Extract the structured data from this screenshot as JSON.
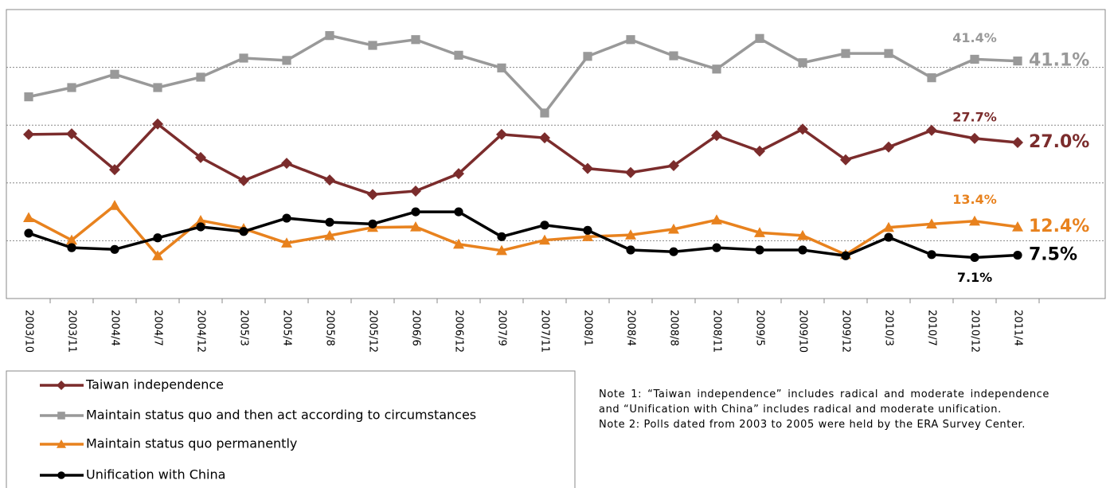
{
  "chart_data": {
    "type": "line",
    "categories": [
      "2003/10",
      "2003/11",
      "2004/4",
      "2004/7",
      "2004/12",
      "2005/3",
      "2005/4",
      "2005/8",
      "2005/12",
      "2006/6",
      "2006/12",
      "2007/9",
      "2007/11",
      "2008/1",
      "2008/4",
      "2008/8",
      "2008/11",
      "2009/5",
      "2009/10",
      "2009/12",
      "2010/3",
      "2010/7",
      "2010/12",
      "2011/4"
    ],
    "ylim": [
      0,
      50
    ],
    "yticks": [
      10,
      20,
      30,
      40
    ],
    "grid": true,
    "series": [
      {
        "name": "Taiwan independence",
        "color": "#7b2c2c",
        "marker": "diamond",
        "values": [
          28.4,
          28.5,
          22.3,
          30.2,
          24.4,
          20.4,
          23.4,
          20.5,
          18.0,
          18.6,
          21.6,
          28.4,
          27.8,
          22.5,
          21.8,
          23.0,
          28.2,
          25.5,
          29.3,
          24.0,
          26.2,
          29.1,
          27.7,
          27.0
        ],
        "value_labels": [
          null,
          null,
          null,
          null,
          null,
          null,
          null,
          null,
          null,
          null,
          null,
          null,
          null,
          null,
          null,
          null,
          null,
          null,
          null,
          null,
          null,
          null,
          "27.7%",
          "27.0%"
        ]
      },
      {
        "name": "Maintain status quo and then act according to circumstances",
        "color": "#999999",
        "marker": "square",
        "values": [
          34.9,
          36.5,
          38.8,
          36.5,
          38.3,
          41.6,
          41.2,
          45.5,
          43.8,
          44.8,
          42.1,
          39.9,
          32.1,
          41.9,
          44.8,
          42.0,
          39.7,
          45.0,
          40.8,
          42.4,
          42.4,
          38.2,
          41.4,
          41.1
        ],
        "value_labels": [
          null,
          null,
          null,
          null,
          null,
          null,
          null,
          null,
          null,
          null,
          null,
          null,
          null,
          null,
          null,
          null,
          null,
          null,
          null,
          null,
          null,
          null,
          "41.4%",
          "41.1%"
        ]
      },
      {
        "name": "Maintain status quo permanently",
        "color": "#e8821e",
        "marker": "triangle",
        "values": [
          14.0,
          10.1,
          16.1,
          7.4,
          13.5,
          12.1,
          9.6,
          10.9,
          12.3,
          12.4,
          9.4,
          8.3,
          10.1,
          10.7,
          11.0,
          12.0,
          13.6,
          11.4,
          10.9,
          7.6,
          12.3,
          12.9,
          13.4,
          12.4
        ],
        "value_labels": [
          null,
          null,
          null,
          null,
          null,
          null,
          null,
          null,
          null,
          null,
          null,
          null,
          null,
          null,
          null,
          null,
          null,
          null,
          null,
          null,
          null,
          null,
          "13.4%",
          "12.4%"
        ]
      },
      {
        "name": "Unification with China",
        "color": "#000000",
        "marker": "circle",
        "values": [
          11.3,
          8.8,
          8.5,
          10.5,
          12.4,
          11.6,
          13.9,
          13.2,
          12.9,
          15.0,
          15.0,
          10.7,
          12.7,
          11.8,
          8.4,
          8.1,
          8.8,
          8.4,
          8.4,
          7.4,
          10.6,
          7.6,
          7.1,
          7.5
        ],
        "value_labels": [
          null,
          null,
          null,
          null,
          null,
          null,
          null,
          null,
          null,
          null,
          null,
          null,
          null,
          null,
          null,
          null,
          null,
          null,
          null,
          null,
          null,
          null,
          "7.1%",
          "7.5%"
        ]
      }
    ],
    "notes": [
      "Note 1: “Taiwan independence” includes radical and moderate independence and “Unification with China” includes radical and moderate unification.",
      "Note 2: Polls dated from 2003 to 2005 were held by the ERA Survey Center."
    ]
  }
}
